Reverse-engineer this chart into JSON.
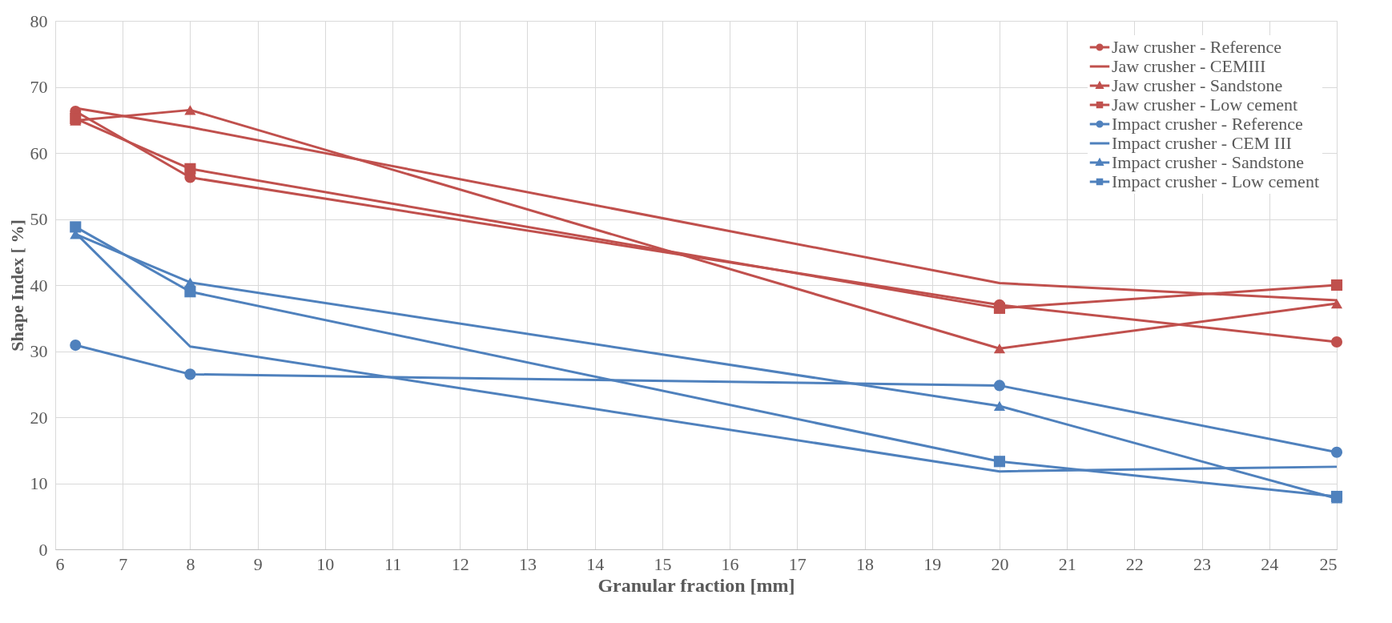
{
  "chart_data": {
    "type": "line",
    "xlabel": "Granular fraction [mm]",
    "ylabel": "Shape Index  [ %]",
    "x": [
      6.3,
      8,
      20,
      25
    ],
    "series": [
      {
        "name": "Jaw crusher - Reference",
        "color": "#c0504d",
        "marker": "circle",
        "values": [
          66.3,
          56.3,
          37.0,
          31.4
        ]
      },
      {
        "name": "Jaw crusher - CEMIII",
        "color": "#c0504d",
        "marker": "none",
        "values": [
          66.8,
          63.9,
          40.3,
          37.7
        ]
      },
      {
        "name": "Jaw crusher - Sandstone",
        "color": "#c0504d",
        "marker": "triangle",
        "values": [
          64.9,
          66.5,
          30.4,
          37.2
        ]
      },
      {
        "name": "Jaw crusher - Low cement",
        "color": "#c0504d",
        "marker": "square",
        "values": [
          65.2,
          57.6,
          36.5,
          40.0
        ]
      },
      {
        "name": "Impact crusher - Reference",
        "color": "#4f81bd",
        "marker": "circle",
        "values": [
          30.9,
          26.5,
          24.8,
          14.7
        ]
      },
      {
        "name": "Impact crusher - CEM III",
        "color": "#4f81bd",
        "marker": "none",
        "values": [
          47.9,
          30.7,
          11.8,
          12.5
        ]
      },
      {
        "name": "Impact crusher - Sandstone",
        "color": "#4f81bd",
        "marker": "triangle",
        "values": [
          47.7,
          40.4,
          21.7,
          7.7
        ]
      },
      {
        "name": "Impact crusher - Low cement",
        "color": "#4f81bd",
        "marker": "square",
        "values": [
          48.8,
          39.0,
          13.3,
          8.0
        ]
      }
    ],
    "xlim": [
      6,
      25
    ],
    "xticks": [
      6,
      7,
      8,
      9,
      10,
      11,
      12,
      13,
      14,
      15,
      16,
      17,
      18,
      19,
      20,
      21,
      22,
      23,
      24,
      25
    ],
    "ylim": [
      0,
      80
    ],
    "yticks": [
      0,
      10,
      20,
      30,
      40,
      50,
      60,
      70,
      80
    ],
    "grid": true,
    "legend": "top right",
    "line_style": "solid"
  }
}
